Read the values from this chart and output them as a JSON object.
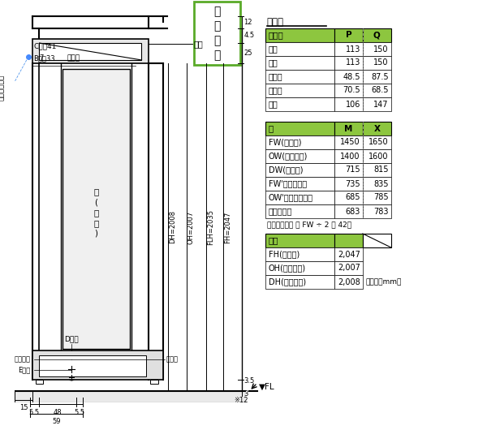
{
  "table1_title": "寸法表",
  "table1_header": [
    "見込み",
    "P",
    "Q"
  ],
  "table1_rows": [
    [
      "縦枠",
      "113",
      "150"
    ],
    [
      "上枠",
      "113",
      "150"
    ],
    [
      "方立枠",
      "48.5",
      "87.5"
    ],
    [
      "戸当枠",
      "70.5",
      "68.5"
    ],
    [
      "下枠",
      "106",
      "147"
    ]
  ],
  "table2_header": [
    "幅",
    "M",
    "X"
  ],
  "table2_rows": [
    [
      "FW(外枠幅)",
      "1450",
      "1650"
    ],
    [
      "OW(外枠内幅)",
      "1400",
      "1600"
    ],
    [
      "DW(ドア幅)",
      "715",
      "815"
    ],
    [
      "FW'（内枠幅）",
      "735",
      "835"
    ],
    [
      "OW'（内枠内幅）",
      "685",
      "785"
    ],
    [
      "有効開口幅",
      "683",
      "783"
    ]
  ],
  "table2_note": "（有効開口幅 ＝ FW ÷ 2 － 42）",
  "table3_header": [
    "高さ"
  ],
  "table3_rows": [
    [
      "FH(枠高さ)",
      "2,047"
    ],
    [
      "OH(枠内高さ)",
      "2,007"
    ],
    [
      "DH(ドア高さ)",
      "2,008"
    ]
  ],
  "table3_note": "（単位：mm）",
  "header_bg": "#8DC63F",
  "green_box_border": "#5AAA28",
  "green_box_text": [
    "縦",
    "断",
    "面",
    "図"
  ],
  "dim_labels_right": [
    "DH=2008",
    "OH=2007",
    "FLH=2035",
    "FH=2047"
  ]
}
